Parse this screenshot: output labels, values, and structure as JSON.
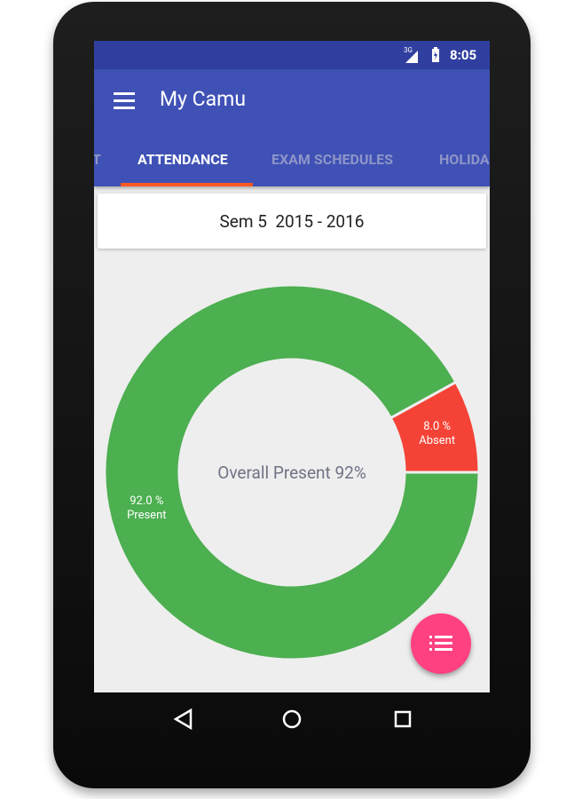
{
  "status_bar": {
    "network": "3G",
    "time": "8:05"
  },
  "app_bar": {
    "title": "My Camu"
  },
  "tabs": [
    "T",
    "ATTENDANCE",
    "EXAM SCHEDULES",
    "HOLIDA"
  ],
  "active_tab": 1,
  "semester": "Sem 5  2015 - 2016",
  "chart_data": {
    "type": "donut",
    "center_label": "Overall Present 92%",
    "categories": [
      "Absent",
      "Present"
    ],
    "values": [
      8.0,
      92.0
    ],
    "value_labels": [
      "8.0 %",
      "92.0 %"
    ],
    "colors": [
      "#f44336",
      "#4caf50"
    ]
  }
}
